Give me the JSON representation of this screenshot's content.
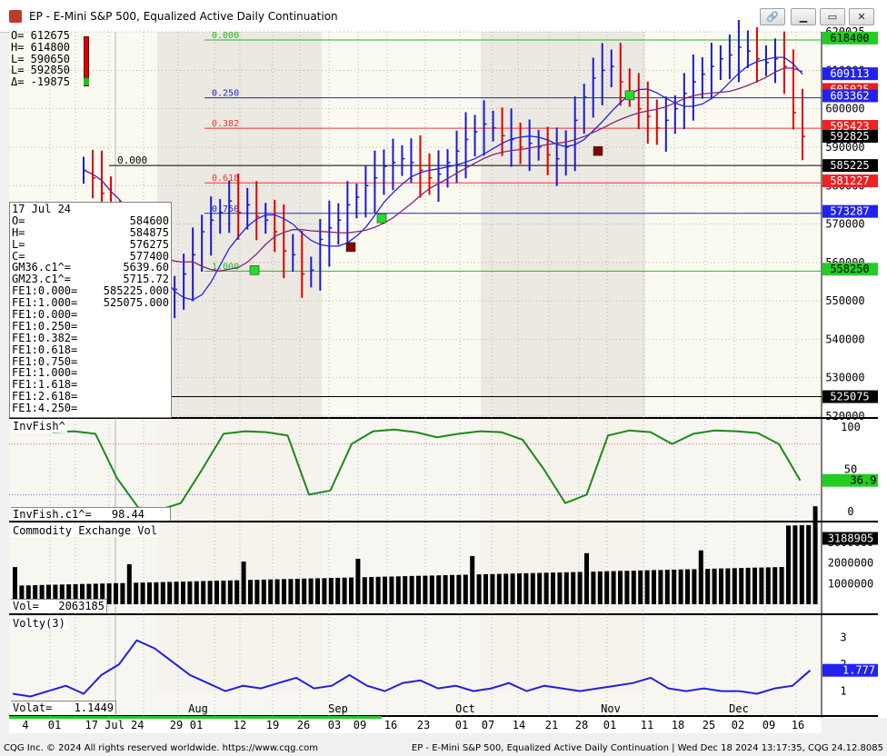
{
  "window": {
    "title": "EP - E-Mini S&P 500, Equalized Active Daily Continuation",
    "buttons": [
      "link",
      "minimize",
      "maximize",
      "close"
    ]
  },
  "ohlc_top": [
    "O= 612675",
    "H= 614800",
    "L= 590650",
    "L= 592850",
    "Δ= -19875"
  ],
  "data_panel": {
    "date": "17 Jul 24",
    "rows": [
      [
        "O=",
        "584600"
      ],
      [
        "H=",
        "584875"
      ],
      [
        "L=",
        "576275"
      ],
      [
        "C=",
        "577400"
      ],
      [
        "GM36.c1^=",
        "5639.60"
      ],
      [
        "GM23.c1^=",
        "5715.72"
      ],
      [
        "FE1:0.000=",
        "585225.000"
      ],
      [
        "FE1:1.000=",
        "525075.000"
      ],
      [
        "FE1:0.000=",
        ""
      ],
      [
        "FE1:0.250=",
        ""
      ],
      [
        "FE1:0.382=",
        ""
      ],
      [
        "FE1:0.618=",
        ""
      ],
      [
        "FE1:0.750=",
        ""
      ],
      [
        "FE1:1.000=",
        ""
      ],
      [
        "FE1:1.618=",
        ""
      ],
      [
        "FE1:2.618=",
        ""
      ],
      [
        "FE1:4.250=",
        ""
      ]
    ]
  },
  "panels": {
    "invfish": {
      "title": "InvFish^",
      "readout_label": "InvFish.c1^=",
      "readout_value": "98.44",
      "axis": [
        "100",
        "50",
        "0"
      ],
      "badge": "36.9"
    },
    "volume": {
      "title": "Commodity Exchange Vol",
      "readout_label": "Vol=",
      "readout_value": "2063185",
      "axis": [
        "3000000",
        "2000000",
        "1000000"
      ],
      "badge": "3188905"
    },
    "volty": {
      "title": "Volty(3)",
      "readout_label": "Volat=",
      "readout_value": "1.1449",
      "axis": [
        "3",
        "2",
        "1"
      ],
      "badge": "1.777"
    }
  },
  "price_axis": {
    "ticks": [
      "620025",
      "610000",
      "600000",
      "590000",
      "580000",
      "570000",
      "560000",
      "550000",
      "540000",
      "530000",
      "520000"
    ],
    "badges": [
      {
        "text": "618400",
        "bg": "#22cc22",
        "fg": "#000000",
        "value": 618400
      },
      {
        "text": "609113",
        "bg": "#2222ee",
        "fg": "#ffffff",
        "value": 609113
      },
      {
        "text": "605025",
        "bg": "#dd2222",
        "fg": "#ffffff",
        "value": 605025
      },
      {
        "text": "603362",
        "bg": "#2222ee",
        "fg": "#ffffff",
        "value": 603362
      },
      {
        "text": "595423",
        "bg": "#ee2222",
        "fg": "#ffffff",
        "value": 595423
      },
      {
        "text": "592825",
        "bg": "#000000",
        "fg": "#ffffff",
        "value": 592825
      },
      {
        "text": "585225",
        "bg": "#000000",
        "fg": "#ffffff",
        "value": 585225
      },
      {
        "text": "581227",
        "bg": "#ee2222",
        "fg": "#ffffff",
        "value": 581227
      },
      {
        "text": "573287",
        "bg": "#2222ee",
        "fg": "#ffffff",
        "value": 573287
      },
      {
        "text": "558250",
        "bg": "#22cc22",
        "fg": "#000000",
        "value": 558250
      },
      {
        "text": "525075",
        "bg": "#000000",
        "fg": "#ffffff",
        "value": 525075
      }
    ]
  },
  "fib_levels": [
    {
      "label": "0.000",
      "value": 617900,
      "color": "#22bb22"
    },
    {
      "label": "0.250",
      "value": 602862,
      "color": "#2222cc"
    },
    {
      "label": "0.382",
      "value": 594923,
      "color": "#ee3333"
    },
    {
      "label": "0.618",
      "value": 580727,
      "color": "#ee3333"
    },
    {
      "label": "0.750",
      "value": 572787,
      "color": "#2222cc"
    },
    {
      "label": "1.000",
      "value": 557750,
      "color": "#22bb22"
    }
  ],
  "side_text": "0.000",
  "x_axis": {
    "ticks": [
      "4",
      "01",
      "17 Jul 24",
      "29",
      "01",
      "12",
      "19",
      "26",
      "03",
      "09",
      "16",
      "23",
      "01",
      "07",
      "14",
      "21",
      "28",
      "01",
      "11",
      "18",
      "25",
      "02",
      "09",
      "16"
    ],
    "months": [
      "Aug",
      "Sep",
      "Oct",
      "Nov",
      "Dec"
    ]
  },
  "status": {
    "left": "CQG Inc. © 2024 All rights reserved worldwide. https://www.cqg.com",
    "right": "EP - E-Mini S&P 500, Equalized Active Daily Continuation | Wed Dec 18 2024 13:17:35, CQG 24.12.8085"
  },
  "chart_data": {
    "type": "bar",
    "x_labels": [
      "4",
      "01",
      "17 Jul 24",
      "29",
      "01",
      "12",
      "19",
      "26",
      "03",
      "09",
      "16",
      "23",
      "01",
      "07",
      "14",
      "21",
      "28",
      "01",
      "11",
      "18",
      "25",
      "02",
      "09",
      "16"
    ],
    "price_series": [
      {
        "name": "daily-close",
        "values": [
          584000,
          582000,
          578000,
          570000,
          567000,
          557000,
          545000,
          538000,
          541000,
          549000,
          553000,
          557000,
          562000,
          568000,
          571000,
          573000,
          576000,
          573000,
          575000,
          572000,
          571000,
          568000,
          563000,
          562000,
          557000,
          558000,
          566000,
          569000,
          571000,
          575000,
          577000,
          580000,
          582000,
          585000,
          586000,
          587000,
          586000,
          584000,
          582000,
          583000,
          586000,
          589000,
          592000,
          594000,
          596000,
          595000,
          593000,
          592000,
          590000,
          591000,
          590000,
          588000,
          587000,
          590000,
          597000,
          603000,
          608000,
          610000,
          611000,
          607000,
          604000,
          600000,
          598000,
          595000,
          597000,
          600000,
          604000,
          607000,
          609000,
          611000,
          613000,
          614000,
          616000,
          615000,
          613000,
          612000,
          613000,
          611000,
          599000,
          592825
        ]
      }
    ],
    "averages": [
      {
        "name": "GM23",
        "color": "#2222dd"
      },
      {
        "name": "GM36",
        "color": "#882277"
      }
    ],
    "ylim": [
      520000,
      620025
    ]
  }
}
